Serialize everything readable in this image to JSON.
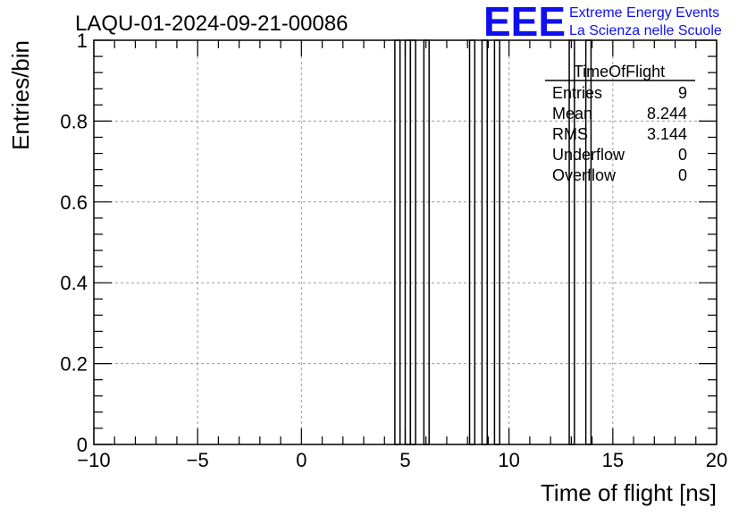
{
  "header": {
    "run_title": "LAQU-01-2024-09-21-00086",
    "logo_text": "EEE",
    "logo_line1": "Extreme Energy Events",
    "logo_line2": "La Scienza nelle Scuole"
  },
  "colors": {
    "logo": "#1010ee",
    "frame": "#000000",
    "grid": "#9a9a9a",
    "bars": "#000000"
  },
  "stats_box": {
    "title": "TimeOfFlight",
    "rows": [
      {
        "label": "Entries",
        "value": "9"
      },
      {
        "label": "Mean",
        "value": "8.244"
      },
      {
        "label": "RMS",
        "value": "3.144"
      },
      {
        "label": "Underflow",
        "value": "0"
      },
      {
        "label": "Overflow",
        "value": "0"
      }
    ]
  },
  "chart_data": {
    "type": "bar",
    "title": "LAQU-01-2024-09-21-00086",
    "xlabel": "Time of flight [ns]",
    "ylabel": "Entries/bin",
    "xlim": [
      -10,
      20
    ],
    "ylim": [
      0,
      1
    ],
    "grid": true,
    "x_ticks": [
      -10,
      -5,
      0,
      5,
      10,
      15,
      20
    ],
    "x_tick_labels": [
      "−10",
      "−5",
      "0",
      "5",
      "10",
      "15",
      "20"
    ],
    "y_ticks": [
      0,
      0.2,
      0.4,
      0.6,
      0.8,
      1
    ],
    "y_tick_labels": [
      "0",
      "0.2",
      "0.4",
      "0.6",
      "0.8",
      "1"
    ],
    "bin_width": 0.25,
    "bins": [
      {
        "x_low": 4.5,
        "value": 1
      },
      {
        "x_low": 5.0,
        "value": 1
      },
      {
        "x_low": 5.25,
        "value": 1
      },
      {
        "x_low": 5.9,
        "value": 1
      },
      {
        "x_low": 8.1,
        "value": 1
      },
      {
        "x_low": 8.7,
        "value": 1
      },
      {
        "x_low": 9.3,
        "value": 1
      },
      {
        "x_low": 12.9,
        "value": 1
      },
      {
        "x_low": 13.7,
        "value": 1
      }
    ]
  }
}
